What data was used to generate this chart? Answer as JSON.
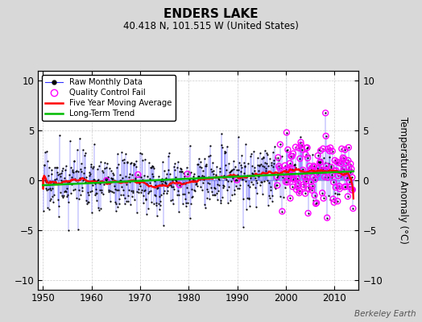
{
  "title": "ENDERS LAKE",
  "subtitle": "40.418 N, 101.515 W (United States)",
  "ylabel": "Temperature Anomaly (°C)",
  "watermark": "Berkeley Earth",
  "xlim": [
    1949,
    2015
  ],
  "ylim": [
    -11,
    11
  ],
  "yticks": [
    -10,
    -5,
    0,
    5,
    10
  ],
  "xticks": [
    1950,
    1960,
    1970,
    1980,
    1990,
    2000,
    2010
  ],
  "fig_bg": "#d8d8d8",
  "plot_bg": "#ffffff",
  "raw_color": "#3333ff",
  "qc_color": "#ff00ff",
  "moving_avg_color": "#ff0000",
  "trend_color": "#00bb00",
  "seed": 17,
  "start_year": 1950,
  "end_year": 2013
}
